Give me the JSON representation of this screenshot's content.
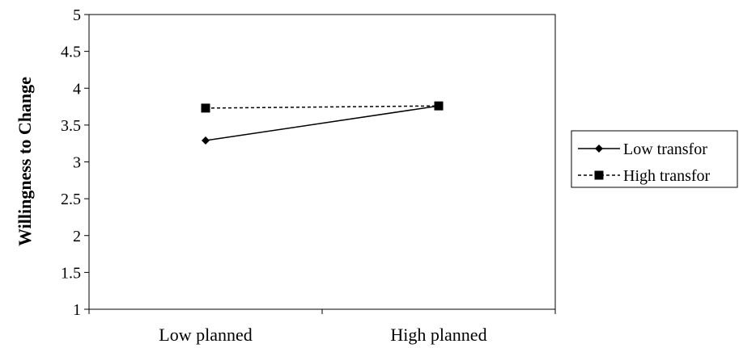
{
  "chart_data": {
    "type": "line",
    "categories": [
      "Low planned",
      "High planned"
    ],
    "ylabel": "Willingness to Change",
    "xlabel": "",
    "title": "",
    "ylim": [
      1,
      5
    ],
    "yticks": [
      "1",
      "1.5",
      "2",
      "2.5",
      "3",
      "3.5",
      "4",
      "4.5",
      "5"
    ],
    "grid": false,
    "legend_position": "right",
    "series": [
      {
        "name": "Low transfor",
        "values": [
          3.29,
          3.76
        ],
        "line_style": "solid",
        "marker": "diamond",
        "color": "#000000"
      },
      {
        "name": "High transfor",
        "values": [
          3.73,
          3.76
        ],
        "line_style": "dashed",
        "marker": "square",
        "color": "#000000"
      }
    ]
  }
}
